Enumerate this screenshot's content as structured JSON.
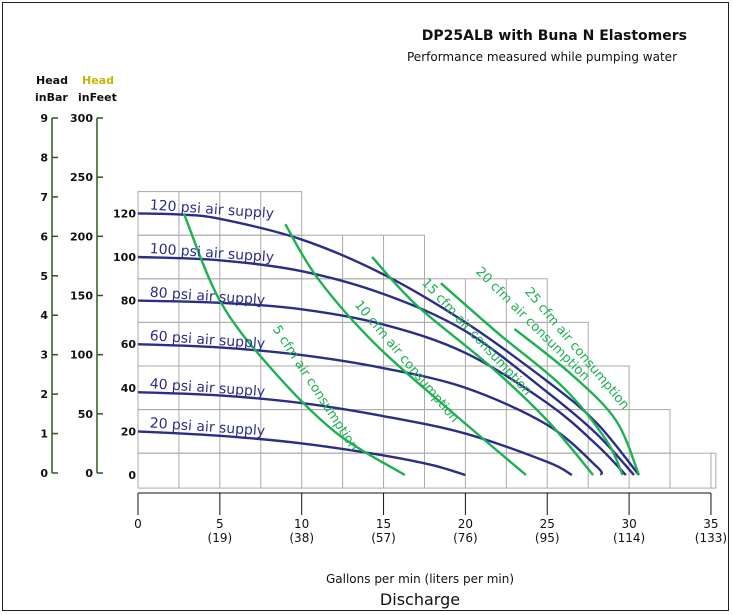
{
  "colors": {
    "psi": "#2b2e86",
    "cfm": "#1eb053",
    "grid": "#aaaaaa",
    "axis_green": "#2a5a1a",
    "head_feet_label": "#c8b400"
  },
  "chart_data": {
    "type": "line",
    "title": "DP25ALB with Buna N Elastomers",
    "subtitle": "Performance measured while pumping water",
    "xlabel": "Gallons per min (liters per min)",
    "xlabel2": "Discharge",
    "xlim": [
      0,
      35
    ],
    "ylim": [
      0,
      138
    ],
    "x_ticks": [
      {
        "v": 0,
        "label": "0",
        "sub": ""
      },
      {
        "v": 5,
        "label": "5",
        "sub": "(19)"
      },
      {
        "v": 10,
        "label": "10",
        "sub": "(38)"
      },
      {
        "v": 15,
        "label": "15",
        "sub": "(57)"
      },
      {
        "v": 20,
        "label": "20",
        "sub": "(76)"
      },
      {
        "v": 25,
        "label": "25",
        "sub": "(95)"
      },
      {
        "v": 30,
        "label": "30",
        "sub": "(114)"
      },
      {
        "v": 35,
        "label": "35",
        "sub": "(133)"
      }
    ],
    "y_axes": {
      "bar": {
        "head": "Head",
        "unit": "inBar",
        "ticks": [
          "0",
          "1",
          "2",
          "3",
          "4",
          "5",
          "6",
          "7",
          "8",
          "9"
        ]
      },
      "feet": {
        "head": "Head",
        "unit": "inFeet",
        "ticks": [
          "0",
          "50",
          "100",
          "150",
          "200",
          "250",
          "300"
        ]
      },
      "psi_ticks": [
        "0",
        "20",
        "40",
        "60",
        "80",
        "100",
        "120"
      ]
    },
    "psi_series": [
      {
        "name": "120 psi air supply",
        "points": [
          [
            0,
            120
          ],
          [
            2.5,
            119.5
          ],
          [
            5,
            117.5
          ],
          [
            10,
            108
          ],
          [
            15,
            92
          ],
          [
            20,
            70
          ],
          [
            25,
            43
          ],
          [
            28,
            24
          ],
          [
            30.6,
            0
          ]
        ]
      },
      {
        "name": "100 psi air supply",
        "points": [
          [
            0,
            100
          ],
          [
            5,
            98.5
          ],
          [
            10,
            93.5
          ],
          [
            15,
            83
          ],
          [
            20,
            66
          ],
          [
            25,
            38
          ],
          [
            28,
            19
          ],
          [
            30.3,
            0
          ]
        ]
      },
      {
        "name": "80 psi air supply",
        "points": [
          [
            0,
            80
          ],
          [
            5,
            79
          ],
          [
            10,
            76
          ],
          [
            15,
            69
          ],
          [
            20,
            56
          ],
          [
            25,
            33
          ],
          [
            28,
            14
          ],
          [
            29.8,
            0
          ]
        ]
      },
      {
        "name": "60 psi air supply",
        "points": [
          [
            0,
            60
          ],
          [
            5,
            58.5
          ],
          [
            10,
            55
          ],
          [
            15,
            49
          ],
          [
            20,
            40
          ],
          [
            25,
            23
          ],
          [
            28,
            4
          ],
          [
            28.3,
            0
          ]
        ]
      },
      {
        "name": "40 psi air supply",
        "points": [
          [
            0,
            38
          ],
          [
            5,
            36.5
          ],
          [
            10,
            33
          ],
          [
            15,
            27
          ],
          [
            20,
            19
          ],
          [
            25,
            6
          ],
          [
            26.5,
            0
          ]
        ]
      },
      {
        "name": "20 psi air supply",
        "points": [
          [
            0,
            20
          ],
          [
            5,
            18
          ],
          [
            10,
            14.5
          ],
          [
            15,
            9
          ],
          [
            18,
            4.5
          ],
          [
            20,
            0
          ]
        ]
      }
    ],
    "cfm_series": [
      {
        "name": "5 cfm air consumption",
        "points": [
          [
            2.8,
            120
          ],
          [
            5,
            80
          ],
          [
            8,
            50
          ],
          [
            12,
            20
          ],
          [
            16.3,
            0
          ]
        ]
      },
      {
        "name": "10 cfm air consumption",
        "points": [
          [
            9,
            115
          ],
          [
            11,
            90
          ],
          [
            14.5,
            60
          ],
          [
            19,
            30
          ],
          [
            23.7,
            0
          ]
        ]
      },
      {
        "name": "15 cfm air consumption",
        "points": [
          [
            14.3,
            100
          ],
          [
            17,
            78
          ],
          [
            21.5,
            50
          ],
          [
            25,
            25
          ],
          [
            27.8,
            0
          ]
        ]
      },
      {
        "name": "20 cfm air consumption",
        "points": [
          [
            18.5,
            88
          ],
          [
            22,
            65
          ],
          [
            26,
            40
          ],
          [
            28.6,
            16
          ],
          [
            29.6,
            0
          ]
        ]
      },
      {
        "name": "25 cfm air consumption",
        "points": [
          [
            23,
            67
          ],
          [
            26.5,
            46
          ],
          [
            29.2,
            25
          ],
          [
            30.6,
            0
          ]
        ]
      }
    ],
    "grid": true
  }
}
